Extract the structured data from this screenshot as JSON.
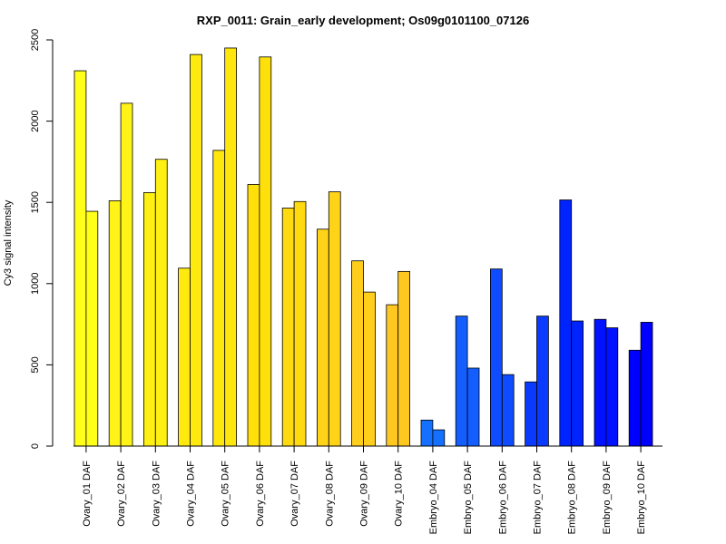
{
  "chart_data": {
    "type": "bar",
    "title": "RXP_0011: Grain_early development; Os09g0101100_07126",
    "ylabel": "Cy3 signal intensity",
    "xlabel": "",
    "ylim": [
      0,
      2500
    ],
    "yticks": [
      0,
      500,
      1000,
      1500,
      2000,
      2500
    ],
    "grid": false,
    "categories": [
      "Ovary_01 DAF",
      "Ovary_02 DAF",
      "Ovary_03 DAF",
      "Ovary_04 DAF",
      "Ovary_05 DAF",
      "Ovary_06 DAF",
      "Ovary_07 DAF",
      "Ovary_08 DAF",
      "Ovary_09 DAF",
      "Ovary_10 DAF",
      "Embryo_04 DAF",
      "Embryo_05 DAF",
      "Embryo_06 DAF",
      "Embryo_07 DAF",
      "Embryo_08 DAF",
      "Embryo_09 DAF",
      "Embryo_10 DAF"
    ],
    "series": [
      {
        "values": [
          2310,
          1510,
          1560,
          1095,
          1820,
          1610,
          1465,
          1335,
          1140,
          870,
          160,
          800,
          1090,
          395,
          1515,
          780,
          590
        ]
      },
      {
        "values": [
          1445,
          2110,
          1765,
          2410,
          2450,
          2395,
          1505,
          1565,
          948,
          1075,
          100,
          480,
          440,
          800,
          770,
          728,
          762
        ]
      }
    ],
    "colors": [
      "#FFFF19",
      "#FFF317",
      "#FFF014",
      "#FFEA10",
      "#FFE70D",
      "#FFE00B",
      "#FFDA10",
      "#FFD418",
      "#FFCE1C",
      "#FFC820",
      "#1670FF",
      "#145EFF",
      "#0F4CFF",
      "#0B3AFF",
      "#0024FF",
      "#0012FF",
      "#0000FF"
    ]
  }
}
